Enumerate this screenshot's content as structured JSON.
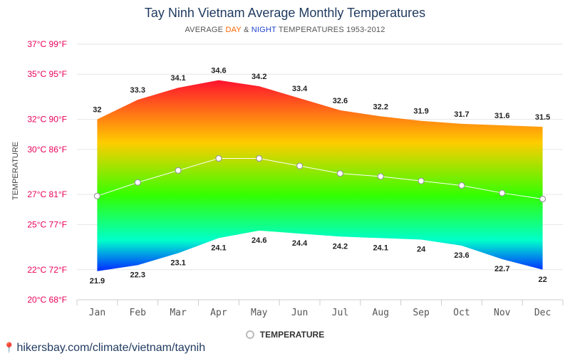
{
  "page": {
    "title": "Tay Ninh Vietnam Average Monthly Temperatures",
    "subtitle_prefix": "AVERAGE ",
    "subtitle_day": "DAY",
    "subtitle_amp": " & ",
    "subtitle_night": "NIGHT",
    "subtitle_suffix": " TEMPERATURES 1953-2012",
    "source_url": "hikersbay.com/climate/vietnam/taynih",
    "legend_label": "TEMPERATURE"
  },
  "colors": {
    "hot": "#ff0033",
    "warm": "#ffcc00",
    "mild": "#33ff00",
    "cool": "#00ffcc",
    "cold": "#0033ff",
    "axis_label": "#e8005a",
    "line": "#ffffff"
  },
  "chart_data": {
    "type": "area",
    "ylabel": "TEMPERATURE",
    "ylim": [
      20,
      37
    ],
    "y_ticks": [
      {
        "value": 20,
        "label": "20°C 68°F"
      },
      {
        "value": 22,
        "label": "22°C 72°F"
      },
      {
        "value": 25,
        "label": "25°C 77°F"
      },
      {
        "value": 27,
        "label": "27°C 81°F"
      },
      {
        "value": 30,
        "label": "30°C 86°F"
      },
      {
        "value": 32,
        "label": "32°C 90°F"
      },
      {
        "value": 35,
        "label": "35°C 95°F"
      },
      {
        "value": 37,
        "label": "37°C 99°F"
      }
    ],
    "categories": [
      "Jan",
      "Feb",
      "Mar",
      "Apr",
      "May",
      "Jun",
      "Jul",
      "Aug",
      "Sep",
      "Oct",
      "Nov",
      "Dec"
    ],
    "series": [
      {
        "name": "DAY",
        "values": [
          32,
          33.3,
          34.1,
          34.6,
          34.2,
          33.4,
          32.6,
          32.2,
          31.9,
          31.7,
          31.6,
          31.5
        ]
      },
      {
        "name": "NIGHT",
        "values": [
          21.9,
          22.3,
          23.1,
          24.1,
          24.6,
          24.4,
          24.2,
          24.1,
          24,
          23.6,
          22.7,
          22
        ]
      },
      {
        "name": "TEMPERATURE",
        "values": [
          26.9,
          27.8,
          28.6,
          29.4,
          29.4,
          28.9,
          28.4,
          28.2,
          27.9,
          27.6,
          27.1,
          26.7
        ]
      }
    ],
    "grid": true,
    "legend": "bottom-center"
  }
}
